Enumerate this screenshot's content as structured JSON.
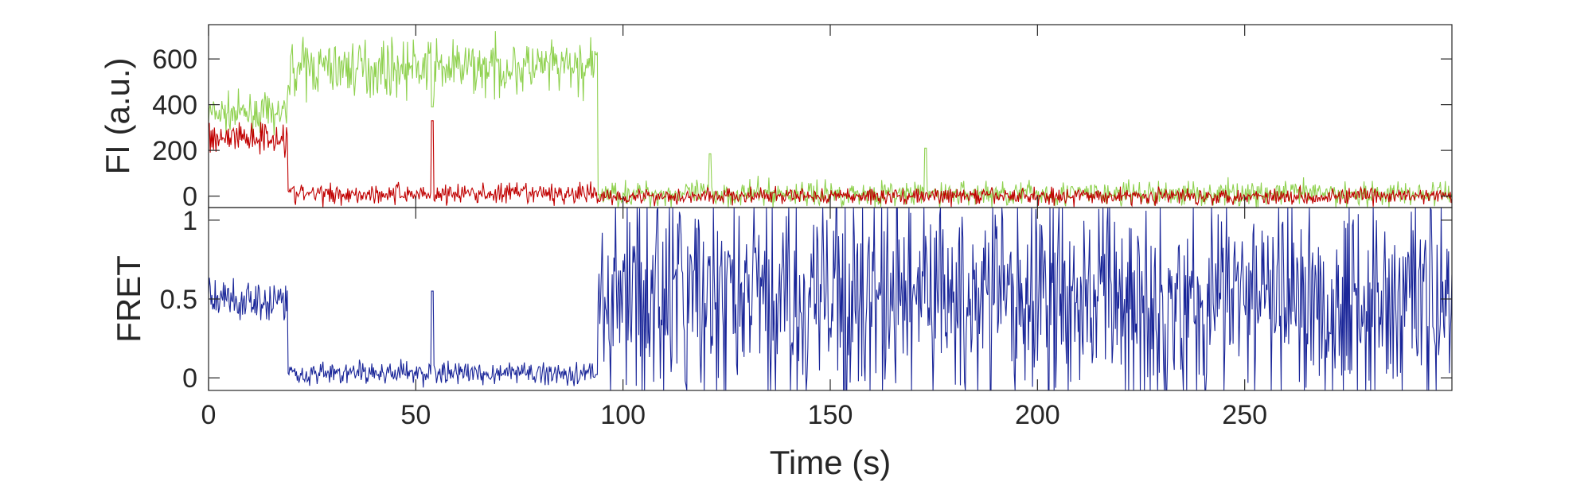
{
  "chart_data": [
    {
      "type": "line",
      "ylabel": "FI (a.u.)",
      "xlim": [
        0,
        300
      ],
      "ylim": [
        -50,
        750
      ],
      "yticks": [
        0,
        200,
        400,
        600
      ],
      "xticks": [
        0,
        50,
        100,
        150,
        200,
        250
      ],
      "grid": false,
      "series": [
        {
          "color": "#8fd14f",
          "segments": [
            {
              "x0": 0,
              "x1": 19,
              "mean": 360,
              "noise": 150
            },
            {
              "x0": 19,
              "x1": 94,
              "mean": 560,
              "noise": 230
            },
            {
              "x0": 94,
              "x1": 300,
              "mean": 10,
              "noise": 110
            }
          ],
          "spikes": [
            {
              "x": 54,
              "y": 390
            },
            {
              "x": 173,
              "y": 210
            },
            {
              "x": 121,
              "y": 185
            }
          ]
        },
        {
          "color": "#c00000",
          "segments": [
            {
              "x0": 0,
              "x1": 19,
              "mean": 260,
              "noise": 150
            },
            {
              "x0": 19,
              "x1": 94,
              "mean": 10,
              "noise": 90
            },
            {
              "x0": 94,
              "x1": 300,
              "mean": 0,
              "noise": 70
            }
          ],
          "spikes": [
            {
              "x": 54,
              "y": 330
            }
          ]
        }
      ]
    },
    {
      "type": "line",
      "ylabel": "FRET",
      "xlabel": "Time (s)",
      "xlim": [
        0,
        300
      ],
      "ylim": [
        -0.08,
        1.08
      ],
      "yticks": [
        0,
        0.5,
        1
      ],
      "ytick_labels": [
        "0",
        "0.5",
        "1"
      ],
      "xticks": [
        0,
        50,
        100,
        150,
        200,
        250
      ],
      "xtick_labels": [
        "0",
        "50",
        "100",
        "150",
        "200",
        "250"
      ],
      "grid": false,
      "series": [
        {
          "color": "#1a2699",
          "segments": [
            {
              "x0": 0,
              "x1": 19,
              "mean": 0.5,
              "noise": 0.28
            },
            {
              "x0": 19,
              "x1": 94,
              "mean": 0.03,
              "noise": 0.14
            },
            {
              "x0": 94,
              "x1": 300,
              "mean": 0.5,
              "noise": 1.4
            }
          ],
          "spikes": [
            {
              "x": 54,
              "y": 0.55
            }
          ]
        }
      ]
    }
  ]
}
